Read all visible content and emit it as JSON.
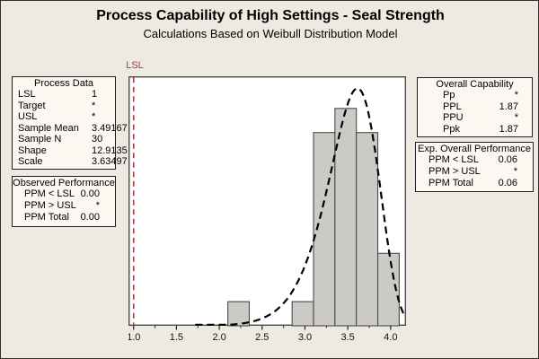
{
  "title": "Process Capability of High Settings - Seal Strength",
  "subtitle": "Calculations Based on Weibull Distribution Model",
  "boxes": {
    "process_data": {
      "title": "Process Data",
      "rows": [
        {
          "label": "LSL",
          "value": "1"
        },
        {
          "label": "Target",
          "value": "*"
        },
        {
          "label": "USL",
          "value": "*"
        },
        {
          "label": "Sample Mean",
          "value": "3.49167"
        },
        {
          "label": "Sample N",
          "value": "30"
        },
        {
          "label": "Shape",
          "value": "12.9135"
        },
        {
          "label": "Scale",
          "value": "3.63497"
        }
      ]
    },
    "observed_performance": {
      "title": "Observed Performance",
      "rows": [
        {
          "label": "PPM < LSL",
          "value": "0.00"
        },
        {
          "label": "PPM > USL",
          "value": "*"
        },
        {
          "label": "PPM Total",
          "value": "0.00"
        }
      ]
    },
    "overall_capability": {
      "title": "Overall Capability",
      "rows": [
        {
          "label": "Pp",
          "value": "*"
        },
        {
          "label": "PPL",
          "value": "1.87"
        },
        {
          "label": "PPU",
          "value": "*"
        },
        {
          "label": "Ppk",
          "value": "1.87"
        }
      ]
    },
    "exp_overall_performance": {
      "title": "Exp. Overall Performance",
      "rows": [
        {
          "label": "PPM < LSL",
          "value": "0.06"
        },
        {
          "label": "PPM > USL",
          "value": "*"
        },
        {
          "label": "PPM Total",
          "value": "0.06"
        }
      ]
    }
  },
  "chart_data": {
    "type": "histogram",
    "title": "Process Capability of High Settings - Seal Strength",
    "subtitle": "Calculations Based on Weibull Distribution Model",
    "xlim": [
      0.94,
      4.18
    ],
    "ylim": [
      0,
      10.33
    ],
    "xticks": [
      1.0,
      1.5,
      2.0,
      2.5,
      3.0,
      3.5,
      4.0
    ],
    "minor_tick_step": 0.25,
    "grid": false,
    "histogram": {
      "bin_start": 2.1,
      "bin_width": 0.25,
      "counts": [
        1,
        0,
        0,
        1,
        8,
        9,
        8,
        3
      ],
      "total_n": 30
    },
    "fit": {
      "distribution": "Weibull",
      "shape": 12.9135,
      "scale": 3.63497,
      "n": 30,
      "plot_from": 1.72,
      "style": "dashed"
    },
    "lsl": {
      "label": "LSL",
      "value": 1.0,
      "color": "#A93B3B"
    },
    "colors": {
      "plot_bg": "#FFFFFF",
      "frame": "#4a4a4a",
      "bar_fill": "#CBCAC7",
      "bar_stroke": "#4a4a4a",
      "curve": "#000000",
      "tick": "#222222",
      "tick_label": "#111111"
    }
  }
}
